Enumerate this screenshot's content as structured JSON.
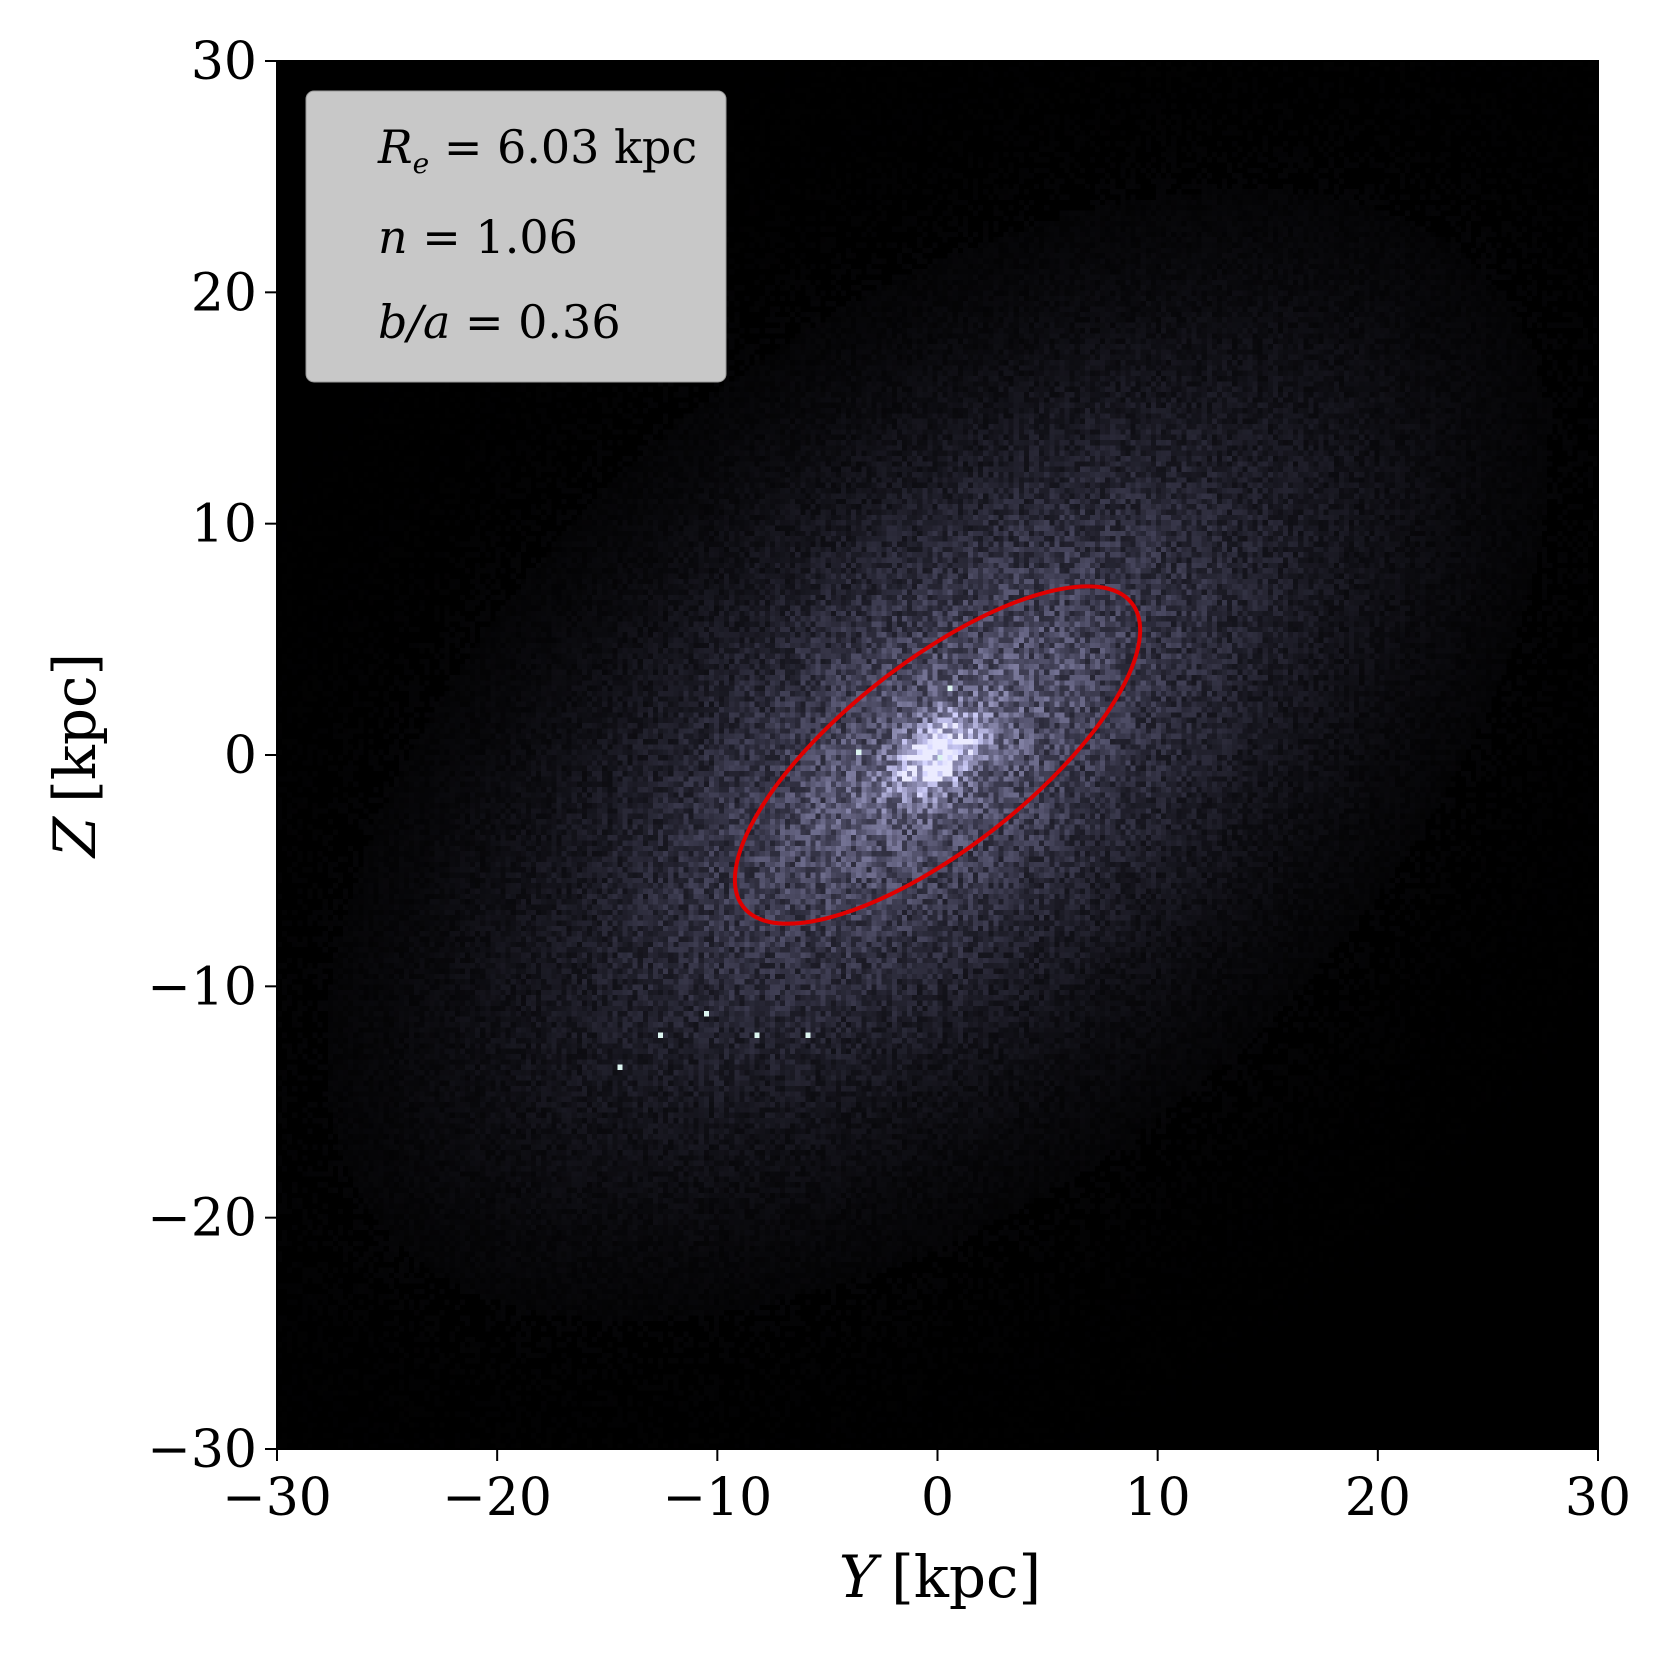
{
  "chart_data": {
    "type": "heatmap",
    "title": "",
    "xlabel": {
      "var": "Y",
      "unit": "[kpc]"
    },
    "ylabel": {
      "var": "Z",
      "unit": "[kpc]"
    },
    "xlim": [
      -30,
      30
    ],
    "ylim": [
      -30,
      30
    ],
    "xticks": [
      -30,
      -20,
      -10,
      0,
      10,
      20,
      30
    ],
    "yticks": [
      -30,
      -20,
      -10,
      0,
      10,
      20,
      30
    ],
    "xtick_labels": [
      "−30",
      "−20",
      "−10",
      "0",
      "10",
      "20",
      "30"
    ],
    "ytick_labels": [
      "−30",
      "−20",
      "−10",
      "0",
      "10",
      "20",
      "30"
    ],
    "grid": false,
    "colormap": "bone",
    "background_color": "#000000",
    "distribution": {
      "center": [
        0,
        0
      ],
      "position_angle_deg": 38,
      "description_components": [
        {
          "component": "disk",
          "sigma_major_kpc": 12.5,
          "sigma_minor_kpc": 6.0
        },
        {
          "component": "envelope",
          "sigma_major_kpc": 15.5,
          "sigma_minor_kpc": 10.0
        },
        {
          "component": "bulge",
          "sigma_major_kpc": 1.4,
          "sigma_minor_kpc": 0.8
        }
      ],
      "bright_pixels": [
        [
          0,
          0
        ],
        [
          0.5,
          2.9
        ],
        [
          -3.6,
          0.1
        ],
        [
          -12.5,
          -12.2
        ],
        [
          -8.2,
          -12.1
        ],
        [
          -14.5,
          -13.6
        ],
        [
          -10.5,
          -11.3
        ],
        [
          -6.0,
          -12.0
        ]
      ]
    },
    "effective_ellipse": {
      "color": "#e00000",
      "center": [
        0,
        0
      ],
      "semi_major_kpc": 11.2,
      "axis_ratio": 0.36,
      "position_angle_deg": 38
    },
    "annotation": {
      "background": "#c8c8c8",
      "lines": [
        {
          "var": "R",
          "sub": "e",
          "text": " = 6.03 kpc"
        },
        {
          "var": "n",
          "sub": "",
          "text": " = 1.06"
        },
        {
          "var": "b/a",
          "sub": "",
          "text": " = 0.36"
        }
      ]
    }
  }
}
